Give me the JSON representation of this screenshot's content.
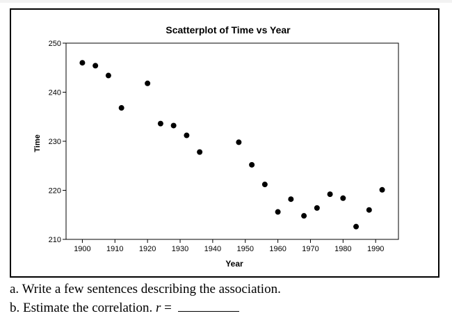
{
  "chart_data": {
    "type": "scatter",
    "title": "Scatterplot of Time vs Year",
    "xlabel": "Year",
    "ylabel": "Time",
    "xlim": [
      1895,
      1997
    ],
    "ylim": [
      210,
      250
    ],
    "xticks": [
      1900,
      1910,
      1920,
      1930,
      1940,
      1950,
      1960,
      1970,
      1980,
      1990
    ],
    "yticks": [
      210,
      220,
      230,
      240,
      250
    ],
    "grid": false,
    "point_color": "#000000",
    "x": [
      1900,
      1904,
      1908,
      1912,
      1920,
      1924,
      1928,
      1932,
      1936,
      1948,
      1952,
      1956,
      1960,
      1964,
      1968,
      1972,
      1976,
      1980,
      1984,
      1988,
      1992
    ],
    "y": [
      246.0,
      245.4,
      243.4,
      236.8,
      241.8,
      233.6,
      233.2,
      231.2,
      227.8,
      229.8,
      225.2,
      221.2,
      215.6,
      218.2,
      214.8,
      216.4,
      219.2,
      218.4,
      212.6,
      216.0,
      220.1
    ]
  },
  "questions": {
    "a": "a. Write a few sentences describing the association.",
    "b_prefix": "b. Estimate the correlation.",
    "b_var": "r",
    "b_eq": "="
  }
}
